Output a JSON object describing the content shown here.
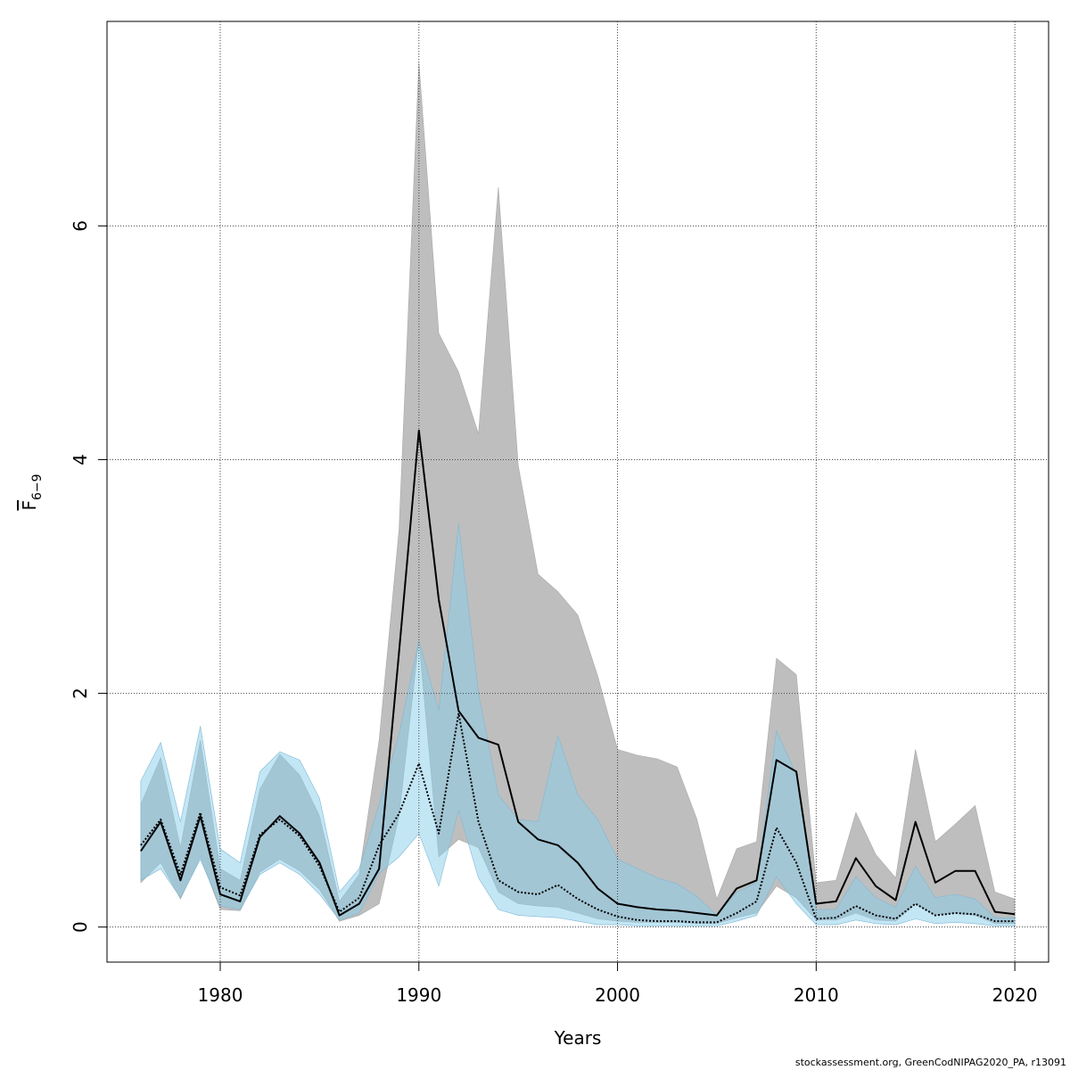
{
  "chart_data": {
    "type": "area",
    "xlabel": "Years",
    "ylabel_main": "F",
    "ylabel_sub": "6−9",
    "xlim": [
      1974.3,
      2021.7
    ],
    "ylim": [
      -0.3,
      7.75
    ],
    "xticks": [
      1980,
      1990,
      2000,
      2010,
      2020
    ],
    "yticks": [
      0,
      2,
      4,
      6
    ],
    "grid": true,
    "colors": {
      "band1": "#bebebe",
      "band2": "#87ceeb",
      "line1": "#000000",
      "line2": "#000000"
    },
    "x": [
      1976,
      1977,
      1978,
      1979,
      1980,
      1981,
      1982,
      1983,
      1984,
      1985,
      1986,
      1987,
      1988,
      1989,
      1990,
      1991,
      1992,
      1993,
      1994,
      1995,
      1996,
      1997,
      1998,
      1999,
      2000,
      2001,
      2002,
      2003,
      2004,
      2005,
      2006,
      2007,
      2008,
      2009,
      2010,
      2011,
      2012,
      2013,
      2014,
      2015,
      2016,
      2017,
      2018,
      2019,
      2020
    ],
    "series": [
      {
        "style": "solid",
        "values": [
          0.65,
          0.9,
          0.4,
          0.95,
          0.28,
          0.22,
          0.77,
          0.95,
          0.8,
          0.55,
          0.1,
          0.2,
          0.5,
          2.35,
          4.25,
          2.8,
          1.85,
          1.62,
          1.56,
          0.9,
          0.75,
          0.7,
          0.55,
          0.33,
          0.2,
          0.17,
          0.15,
          0.14,
          0.12,
          0.1,
          0.33,
          0.4,
          1.43,
          1.33,
          0.2,
          0.22,
          0.59,
          0.35,
          0.23,
          0.9,
          0.38,
          0.48,
          0.48,
          0.13,
          0.11
        ],
        "lower": [
          0.38,
          0.55,
          0.24,
          0.6,
          0.15,
          0.14,
          0.47,
          0.58,
          0.48,
          0.32,
          0.05,
          0.1,
          0.2,
          0.95,
          2.45,
          0.6,
          0.75,
          0.68,
          0.3,
          0.2,
          0.18,
          0.17,
          0.12,
          0.07,
          0.05,
          0.04,
          0.04,
          0.04,
          0.03,
          0.03,
          0.08,
          0.12,
          0.35,
          0.25,
          0.06,
          0.06,
          0.12,
          0.06,
          0.05,
          0.2,
          0.1,
          0.12,
          0.1,
          0.03,
          0.03
        ],
        "upper": [
          1.05,
          1.45,
          0.68,
          1.6,
          0.5,
          0.4,
          1.18,
          1.48,
          1.3,
          0.95,
          0.22,
          0.45,
          1.6,
          3.4,
          7.4,
          5.08,
          4.75,
          4.22,
          6.33,
          3.95,
          3.02,
          2.87,
          2.67,
          2.15,
          1.52,
          1.47,
          1.44,
          1.37,
          0.92,
          0.24,
          0.67,
          0.73,
          2.3,
          2.16,
          0.38,
          0.4,
          0.98,
          0.62,
          0.42,
          1.52,
          0.73,
          0.88,
          1.04,
          0.3,
          0.24
        ]
      },
      {
        "style": "dotted",
        "values": [
          0.7,
          0.92,
          0.45,
          0.98,
          0.34,
          0.27,
          0.79,
          0.92,
          0.78,
          0.52,
          0.13,
          0.25,
          0.7,
          0.97,
          1.4,
          0.8,
          1.83,
          0.9,
          0.4,
          0.3,
          0.28,
          0.36,
          0.24,
          0.15,
          0.09,
          0.06,
          0.05,
          0.05,
          0.04,
          0.04,
          0.12,
          0.22,
          0.85,
          0.55,
          0.07,
          0.08,
          0.18,
          0.1,
          0.07,
          0.2,
          0.1,
          0.12,
          0.11,
          0.05,
          0.05
        ],
        "lower": [
          0.4,
          0.5,
          0.25,
          0.58,
          0.18,
          0.15,
          0.45,
          0.55,
          0.45,
          0.28,
          0.06,
          0.12,
          0.46,
          0.6,
          0.8,
          0.35,
          1.0,
          0.42,
          0.15,
          0.1,
          0.09,
          0.08,
          0.05,
          0.02,
          0.02,
          0.01,
          0.01,
          0.01,
          0.01,
          0.01,
          0.05,
          0.1,
          0.43,
          0.2,
          0.02,
          0.02,
          0.06,
          0.03,
          0.02,
          0.07,
          0.03,
          0.04,
          0.03,
          0.01,
          0.01
        ],
        "upper": [
          1.25,
          1.58,
          0.9,
          1.72,
          0.67,
          0.55,
          1.33,
          1.5,
          1.43,
          1.1,
          0.3,
          0.5,
          1.05,
          1.65,
          2.45,
          1.85,
          3.45,
          2.0,
          1.13,
          0.92,
          0.9,
          1.64,
          1.13,
          0.92,
          0.58,
          0.5,
          0.42,
          0.37,
          0.26,
          0.1,
          0.3,
          0.38,
          1.68,
          1.3,
          0.15,
          0.15,
          0.43,
          0.25,
          0.17,
          0.52,
          0.25,
          0.28,
          0.24,
          0.08,
          0.08
        ]
      }
    ]
  },
  "footer": {
    "credit": "stockassessment.org, GreenCodNIPAG2020_PA, r13091"
  }
}
